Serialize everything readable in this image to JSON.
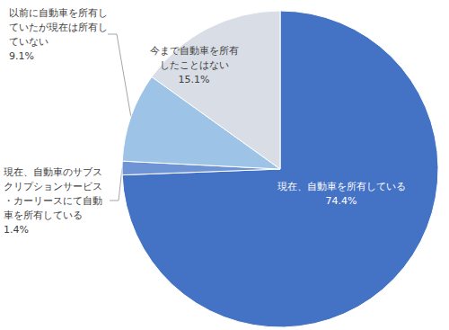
{
  "chart_data": {
    "type": "pie",
    "categories": [
      "現在、自動車を所有している",
      "現在、自動車のサブスクリプションサービス・カーリースにて自動車を所有している",
      "以前に自動車を所有していたが現在は所有していない",
      "今まで自動車を所有したことはない"
    ],
    "values": [
      74.4,
      1.4,
      9.1,
      15.1
    ],
    "value_labels": [
      "74.4%",
      "1.4%",
      "9.1%",
      "15.1%"
    ],
    "colors": [
      "#4472c4",
      "#6f94d6",
      "#9dc3e6",
      "#d9dde6"
    ],
    "data_labels": true
  }
}
